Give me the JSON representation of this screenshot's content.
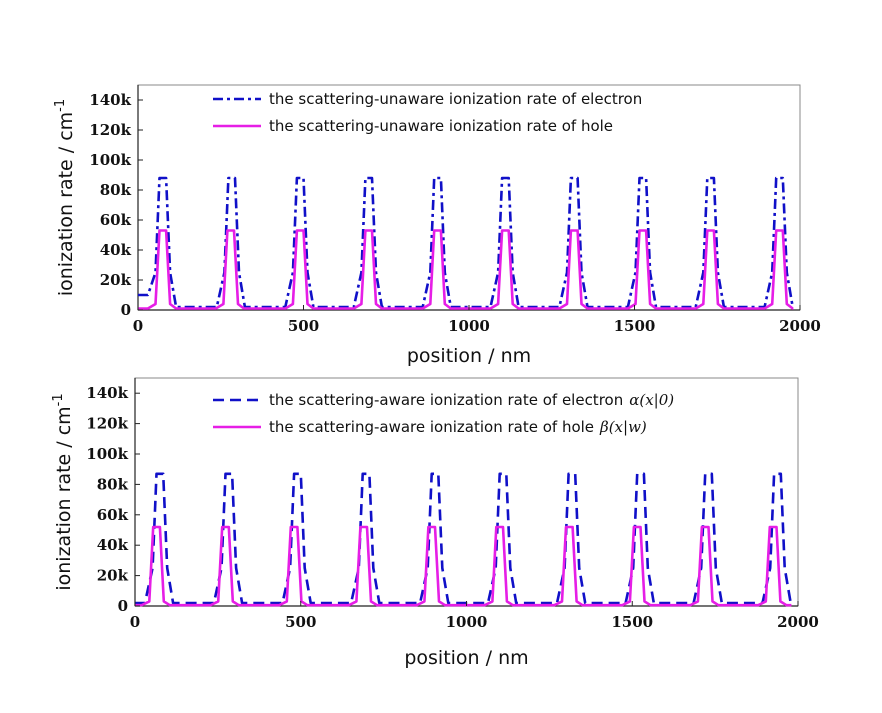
{
  "chart_data": [
    {
      "type": "line",
      "xlabel": "position / nm",
      "ylabel": "ionization rate / cm",
      "ylabel_superscript": "-1",
      "xlim": [
        0,
        2000
      ],
      "ylim": [
        0,
        150000
      ],
      "x_ticks": [
        "0",
        "500",
        "1000",
        "1500",
        "2000"
      ],
      "y_ticks": [
        "0",
        "20k",
        "40k",
        "60k",
        "80k",
        "100k",
        "120k",
        "140k"
      ],
      "legend_position": "top-center",
      "series": [
        {
          "name": "the scattering-unaware ionization rate of electron",
          "color": "#1010c8",
          "style": "dashdot",
          "peak_centers": [
            75,
            283,
            490,
            697,
            905,
            1110,
            1318,
            1525,
            1730,
            1938
          ],
          "peak_value": 88000,
          "shoulder_value": 25000,
          "baseline_left": 10000,
          "baseline": 2000
        },
        {
          "name": "the scattering-unaware ionization rate of hole",
          "color": "#e61ee6",
          "style": "solid",
          "peak_centers": [
            75,
            280,
            490,
            697,
            905,
            1110,
            1318,
            1525,
            1730,
            1938
          ],
          "peak_value": 53000,
          "shoulder_value": 4000,
          "baseline": 1000
        }
      ]
    },
    {
      "type": "line",
      "xlabel": "position / nm",
      "ylabel": "ionization rate / cm",
      "ylabel_superscript": "-1",
      "xlim": [
        0,
        2000
      ],
      "ylim": [
        0,
        150000
      ],
      "x_ticks": [
        "0",
        "500",
        "1000",
        "1500",
        "2000"
      ],
      "y_ticks": [
        "0",
        "20k",
        "40k",
        "60k",
        "80k",
        "100k",
        "120k",
        "140k"
      ],
      "legend_position": "top-center",
      "series": [
        {
          "name": "the scattering-aware ionization rate of electron",
          "math": "α(x|0)",
          "color": "#1010c8",
          "style": "dashed",
          "peak_centers": [
            75,
            283,
            490,
            697,
            905,
            1110,
            1318,
            1525,
            1730,
            1938
          ],
          "peak_value": 87000,
          "shoulder_value": 25000,
          "baseline": 2000
        },
        {
          "name": "the scattering-aware ionization rate of hole",
          "math": "β(x|w)",
          "color": "#e61ee6",
          "style": "solid",
          "peak_centers": [
            65,
            273,
            480,
            690,
            895,
            1100,
            1310,
            1515,
            1720,
            1925
          ],
          "peak_value": 52000,
          "shoulder_value": 3000,
          "baseline": 500
        }
      ]
    }
  ]
}
